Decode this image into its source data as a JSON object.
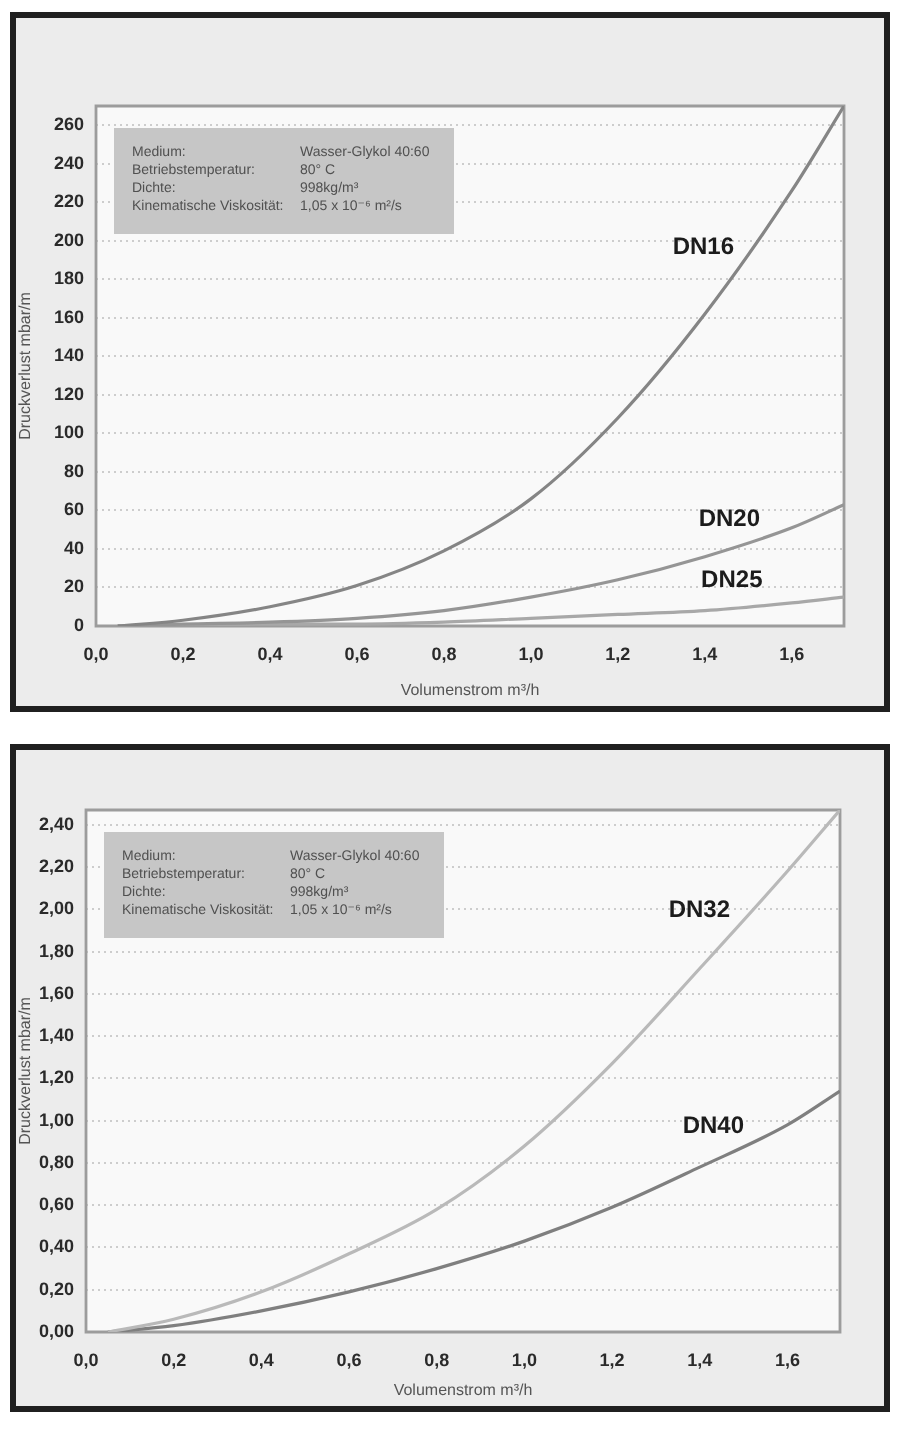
{
  "chart_data": [
    {
      "type": "line",
      "xlabel": "Volumenstrom m³/h",
      "ylabel": "Druckverlust mbar/m",
      "annotations": [
        "Medium:",
        "Wasser-Glykol 40:60",
        "Betriebstemperatur:",
        "80° C",
        "Dichte:",
        "998kg/m³",
        "Kinematische Viskosität:",
        "1,05 x 10⁻⁶ m²/s"
      ],
      "x": [
        0.05,
        0.2,
        0.4,
        0.6,
        0.8,
        1.0,
        1.2,
        1.4,
        1.6,
        1.72
      ],
      "xlim": [
        0,
        1.72
      ],
      "xticks": [
        {
          "value": 0,
          "label": "0,0"
        },
        {
          "value": 0.2,
          "label": "0,2"
        },
        {
          "value": 0.4,
          "label": "0,4"
        },
        {
          "value": 0.6,
          "label": "0,6"
        },
        {
          "value": 0.8,
          "label": "0,8"
        },
        {
          "value": 1.0,
          "label": "1,0"
        },
        {
          "value": 1.2,
          "label": "1,2"
        },
        {
          "value": 1.4,
          "label": "1,4"
        },
        {
          "value": 1.6,
          "label": "1,6"
        }
      ],
      "ylim": [
        0,
        270
      ],
      "yticks": [
        0,
        20,
        40,
        60,
        80,
        100,
        120,
        140,
        160,
        180,
        200,
        220,
        240,
        260
      ],
      "grid": "y",
      "legend": false,
      "marker": "none",
      "line_style": "solid",
      "series": [
        {
          "name": "DN16",
          "color": "#858585",
          "values": [
            0,
            3,
            10,
            21,
            39,
            66,
            108,
            162,
            226,
            270
          ]
        },
        {
          "name": "DN20",
          "color": "#959595",
          "values": [
            0,
            1,
            2,
            4,
            8,
            15,
            24,
            36,
            51,
            63
          ]
        },
        {
          "name": "DN25",
          "color": "#a8a8a8",
          "values": [
            0,
            0,
            1,
            1,
            2,
            4,
            6,
            8,
            12,
            15
          ]
        }
      ]
    },
    {
      "type": "line",
      "xlabel": "Volumenstrom m³/h",
      "ylabel": "Druckverlust mbar/m",
      "annotations": [
        "Medium:",
        "Wasser-Glykol 40:60",
        "Betriebstemperatur:",
        "80° C",
        "Dichte:",
        "998kg/m³",
        "Kinematische Viskosität:",
        "1,05 x 10⁻⁶ m²/s"
      ],
      "x": [
        0.05,
        0.2,
        0.4,
        0.6,
        0.8,
        1.0,
        1.2,
        1.4,
        1.6,
        1.72
      ],
      "xlim": [
        0,
        1.72
      ],
      "xticks": [
        {
          "value": 0,
          "label": "0,0"
        },
        {
          "value": 0.2,
          "label": "0,2"
        },
        {
          "value": 0.4,
          "label": "0,4"
        },
        {
          "value": 0.6,
          "label": "0,6"
        },
        {
          "value": 0.8,
          "label": "0,8"
        },
        {
          "value": 1.0,
          "label": "1,0"
        },
        {
          "value": 1.2,
          "label": "1,2"
        },
        {
          "value": 1.4,
          "label": "1,4"
        },
        {
          "value": 1.6,
          "label": "1,6"
        }
      ],
      "ylim": [
        0,
        2.47
      ],
      "yticks": [
        {
          "value": 0,
          "label": "0,00"
        },
        {
          "value": 0.2,
          "label": "0,20"
        },
        {
          "value": 0.4,
          "label": "0,40"
        },
        {
          "value": 0.6,
          "label": "0,60"
        },
        {
          "value": 0.8,
          "label": "0,80"
        },
        {
          "value": 1.0,
          "label": "1,00"
        },
        {
          "value": 1.2,
          "label": "1,20"
        },
        {
          "value": 1.4,
          "label": "1,40"
        },
        {
          "value": 1.6,
          "label": "1,60"
        },
        {
          "value": 1.8,
          "label": "1,80"
        },
        {
          "value": 2.0,
          "label": "2,00"
        },
        {
          "value": 2.2,
          "label": "2,20"
        },
        {
          "value": 2.4,
          "label": "2,40"
        }
      ],
      "grid": "y",
      "legend": false,
      "marker": "none",
      "line_style": "solid",
      "series": [
        {
          "name": "DN32",
          "color": "#b9b9b9",
          "values": [
            0,
            0.06,
            0.19,
            0.37,
            0.58,
            0.88,
            1.27,
            1.72,
            2.18,
            2.47
          ]
        },
        {
          "name": "DN40",
          "color": "#7f7f7f",
          "values": [
            0,
            0.03,
            0.1,
            0.19,
            0.3,
            0.43,
            0.59,
            0.78,
            0.98,
            1.14
          ]
        }
      ]
    }
  ]
}
